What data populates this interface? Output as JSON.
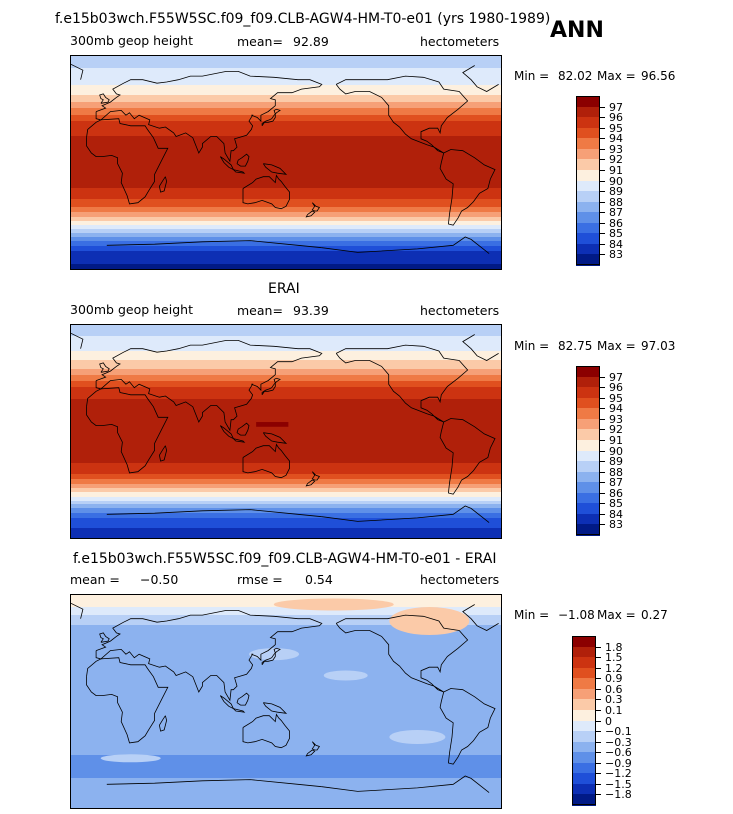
{
  "header": {
    "top_title": "f.e15b03wch.F55W5SC.f09_f09.CLB-AGW4-HM-T0-e01 (yrs 1980-1989)",
    "season": "ANN"
  },
  "panels": [
    {
      "id": "model",
      "title": "",
      "field_label": "300mb geop height",
      "mean_label": "mean=",
      "mean_value": "92.89",
      "units": "hectometers",
      "min_label": "Min =",
      "min_value": "82.02",
      "max_label": "Max =",
      "max_value": "96.56"
    },
    {
      "id": "obs",
      "title": "ERAI",
      "field_label": "300mb geop height",
      "mean_label": "mean=",
      "mean_value": "93.39",
      "units": "hectometers",
      "min_label": "Min =",
      "min_value": "82.75",
      "max_label": "Max =",
      "max_value": "97.03"
    },
    {
      "id": "diff",
      "title": "f.e15b03wch.F55W5SC.f09_f09.CLB-AGW4-HM-T0-e01 - ERAI",
      "field_label": "mean =",
      "mean_label": "rmse =",
      "mean_value": "−0.50",
      "rmse_value": "0.54",
      "units": "hectometers",
      "min_label": "Min =",
      "min_value": "−1.08",
      "max_label": "Max =",
      "max_value": "0.27"
    }
  ],
  "colorbars": {
    "abs": {
      "labels": [
        "97",
        "96",
        "95",
        "94",
        "93",
        "92",
        "91",
        "90",
        "89",
        "88",
        "87",
        "86",
        "85",
        "84",
        "83"
      ],
      "colors": [
        "#8b0000",
        "#b0200a",
        "#cc3311",
        "#e0501f",
        "#ef7a45",
        "#f6a077",
        "#fbcaa8",
        "#fdf0df",
        "#deeafb",
        "#b8d0f6",
        "#8cb2ef",
        "#5f90e8",
        "#3a6fe3",
        "#1f4fd8",
        "#0d2fb4",
        "#011a86"
      ]
    },
    "diff": {
      "labels": [
        "1.8",
        "1.5",
        "1.2",
        "0.9",
        "0.6",
        "0.3",
        "0.1",
        "0",
        "−0.1",
        "−0.3",
        "−0.6",
        "−0.9",
        "−1.2",
        "−1.5",
        "−1.8"
      ],
      "colors": [
        "#8b0000",
        "#b0200a",
        "#cc3311",
        "#e0501f",
        "#ef7a45",
        "#f6a077",
        "#fbcaa8",
        "#fdf0df",
        "#deeafb",
        "#b8d0f6",
        "#8cb2ef",
        "#5f90e8",
        "#3a6fe3",
        "#1f4fd8",
        "#0d2fb4",
        "#011a86"
      ]
    }
  },
  "chart_data": [
    {
      "type": "heatmap",
      "title": "300mb geop height",
      "units": "hectometers",
      "mean": 92.89,
      "min": 82.02,
      "max": 96.56,
      "levels": [
        83,
        84,
        85,
        86,
        87,
        88,
        89,
        90,
        91,
        92,
        93,
        94,
        95,
        96,
        97
      ],
      "lat_profile": [
        {
          "lat": 90,
          "value": 88.5
        },
        {
          "lat": 70,
          "value": 89.5
        },
        {
          "lat": 55,
          "value": 91.2
        },
        {
          "lat": 45,
          "value": 93.2
        },
        {
          "lat": 35,
          "value": 95.0
        },
        {
          "lat": 20,
          "value": 96.2
        },
        {
          "lat": 0,
          "value": 96.4
        },
        {
          "lat": -20,
          "value": 96.2
        },
        {
          "lat": -35,
          "value": 94.6
        },
        {
          "lat": -45,
          "value": 92.2
        },
        {
          "lat": -55,
          "value": 89.4
        },
        {
          "lat": -65,
          "value": 86.4
        },
        {
          "lat": -75,
          "value": 84.0
        },
        {
          "lat": -90,
          "value": 82.6
        }
      ]
    },
    {
      "type": "heatmap",
      "title": "ERAI",
      "subtitle": "300mb geop height",
      "units": "hectometers",
      "mean": 93.39,
      "min": 82.75,
      "max": 97.03,
      "levels": [
        83,
        84,
        85,
        86,
        87,
        88,
        89,
        90,
        91,
        92,
        93,
        94,
        95,
        96,
        97
      ],
      "lat_profile": [
        {
          "lat": 90,
          "value": 88.3
        },
        {
          "lat": 70,
          "value": 89.8
        },
        {
          "lat": 55,
          "value": 91.6
        },
        {
          "lat": 45,
          "value": 93.6
        },
        {
          "lat": 35,
          "value": 95.4
        },
        {
          "lat": 20,
          "value": 96.6
        },
        {
          "lat": 0,
          "value": 96.8
        },
        {
          "lat": -20,
          "value": 96.6
        },
        {
          "lat": -35,
          "value": 95.2
        },
        {
          "lat": -45,
          "value": 92.8
        },
        {
          "lat": -55,
          "value": 90.0
        },
        {
          "lat": -65,
          "value": 87.0
        },
        {
          "lat": -75,
          "value": 84.6
        },
        {
          "lat": -90,
          "value": 83.2
        }
      ]
    },
    {
      "type": "heatmap",
      "title": "f.e15b03wch.F55W5SC.f09_f09.CLB-AGW4-HM-T0-e01 - ERAI",
      "units": "hectometers",
      "mean": -0.5,
      "rmse": 0.54,
      "min": -1.08,
      "max": 0.27,
      "levels": [
        -1.8,
        -1.5,
        -1.2,
        -0.9,
        -0.6,
        -0.3,
        -0.1,
        0,
        0.1,
        0.3,
        0.6,
        0.9,
        1.2,
        1.5,
        1.8
      ],
      "lat_profile": [
        {
          "lat": 90,
          "value": 0.1
        },
        {
          "lat": 75,
          "value": -0.05
        },
        {
          "lat": 60,
          "value": -0.4
        },
        {
          "lat": 40,
          "value": -0.45
        },
        {
          "lat": 20,
          "value": -0.45
        },
        {
          "lat": 0,
          "value": -0.4
        },
        {
          "lat": -20,
          "value": -0.45
        },
        {
          "lat": -40,
          "value": -0.55
        },
        {
          "lat": -55,
          "value": -0.7
        },
        {
          "lat": -70,
          "value": -0.55
        },
        {
          "lat": -90,
          "value": -0.5
        }
      ]
    }
  ]
}
